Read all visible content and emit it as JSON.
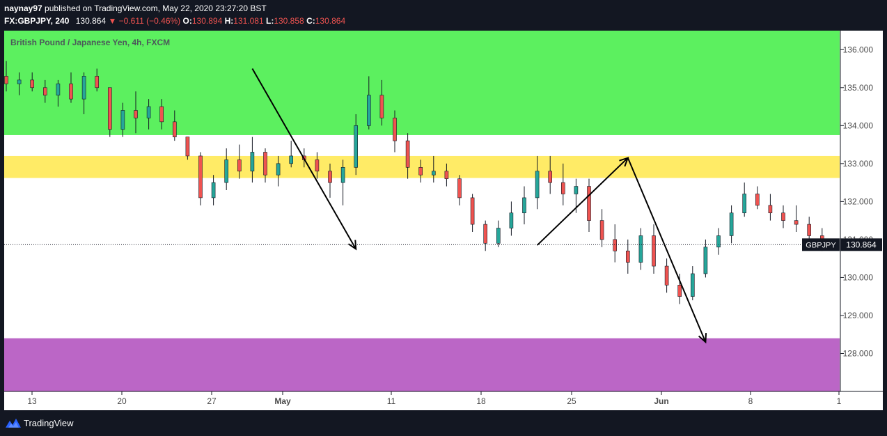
{
  "header": {
    "author": "naynay97",
    "published_text": "published on TradingView.com, May 22, 2020 23:27:20 BST",
    "symbol": "FX:GBPJPY, 240",
    "price": "130.864",
    "change": "▼ −0.611 (−0.46%)",
    "o_label": "O:",
    "o_value": "130.894",
    "h_label": "H:",
    "h_value": "131.081",
    "l_label": "L:",
    "l_value": "130.858",
    "c_label": "C:",
    "c_value": "130.864"
  },
  "chart_title": "British Pound / Japanese Yen, 4h, FXCM",
  "price_tag": {
    "symbol": "GBPJPY",
    "value": "130.864"
  },
  "footer": {
    "brand": "TradingView"
  },
  "colors": {
    "supply_zone": "#5cf05f",
    "resistance_zone": "#ffeb66",
    "demand_zone": "#bb66c6",
    "bull": "#26a69a",
    "bear": "#ef5350",
    "dark_bg": "#131722"
  },
  "chart_data": {
    "type": "candlestick",
    "title": "British Pound / Japanese Yen, 4h, FXCM",
    "y_axis": {
      "ticks": [
        "136.000",
        "135.000",
        "134.000",
        "133.000",
        "132.000",
        "131.000",
        "130.000",
        "129.000",
        "128.000"
      ],
      "range": [
        127.0,
        136.5
      ]
    },
    "x_axis": {
      "ticks": [
        "13",
        "20",
        "27",
        "May",
        "11",
        "18",
        "25",
        "Jun",
        "8",
        "1"
      ]
    },
    "last_price": 130.864,
    "zones": [
      {
        "name": "supply",
        "from": 133.75,
        "to": 136.5,
        "color": "#5cf05f"
      },
      {
        "name": "resistance",
        "from": 132.62,
        "to": 133.2,
        "color": "#ffeb66"
      },
      {
        "name": "demand",
        "from": 127.0,
        "to": 128.4,
        "color": "#bb66c6"
      }
    ],
    "drawings": [
      {
        "name": "drop-arrow",
        "from": {
          "date": "2020-04-30",
          "price": 135.5
        },
        "to": {
          "date": "2020-05-08",
          "price": 130.75
        }
      },
      {
        "name": "rise-arrow",
        "from": {
          "date": "2020-05-22",
          "price": 130.85
        },
        "to": {
          "date": "2020-05-29",
          "price": 133.15
        }
      },
      {
        "name": "target-arrow",
        "from": {
          "date": "2020-05-29",
          "price": 133.15
        },
        "to": {
          "date": "2020-06-04",
          "price": 128.3
        }
      }
    ],
    "candles": [
      [
        "2020-04-11",
        135.3,
        135.7,
        134.9,
        135.1
      ],
      [
        "2020-04-12",
        135.1,
        135.4,
        134.8,
        135.2
      ],
      [
        "2020-04-13",
        135.2,
        135.4,
        134.9,
        135.0
      ],
      [
        "2020-04-14",
        135.0,
        135.2,
        134.6,
        134.8
      ],
      [
        "2020-04-15",
        134.8,
        135.2,
        134.5,
        135.1
      ],
      [
        "2020-04-16",
        135.1,
        135.4,
        134.6,
        134.7
      ],
      [
        "2020-04-17",
        134.7,
        135.4,
        134.3,
        135.3
      ],
      [
        "2020-04-18",
        135.3,
        135.5,
        134.9,
        135.0
      ],
      [
        "2020-04-19",
        135.0,
        135.0,
        133.7,
        133.9
      ],
      [
        "2020-04-20",
        133.9,
        134.6,
        133.7,
        134.4
      ],
      [
        "2020-04-21",
        134.4,
        134.9,
        133.8,
        134.2
      ],
      [
        "2020-04-22",
        134.2,
        134.7,
        133.9,
        134.5
      ],
      [
        "2020-04-23",
        134.5,
        134.7,
        133.9,
        134.1
      ],
      [
        "2020-04-24",
        134.1,
        134.4,
        133.6,
        133.7
      ],
      [
        "2020-04-25",
        133.7,
        133.7,
        133.1,
        133.2
      ],
      [
        "2020-04-26",
        133.2,
        133.3,
        131.9,
        132.1
      ],
      [
        "2020-04-27",
        132.1,
        132.7,
        131.9,
        132.5
      ],
      [
        "2020-04-28",
        132.5,
        133.4,
        132.3,
        133.1
      ],
      [
        "2020-04-29",
        133.1,
        133.5,
        132.6,
        132.8
      ],
      [
        "2020-04-30",
        132.8,
        133.7,
        132.5,
        133.3
      ],
      [
        "2020-05-01",
        133.3,
        133.4,
        132.5,
        132.7
      ],
      [
        "2020-05-02",
        132.7,
        133.2,
        132.4,
        133.0
      ],
      [
        "2020-05-03",
        133.0,
        133.6,
        132.9,
        133.2
      ],
      [
        "2020-05-04",
        133.2,
        133.4,
        132.9,
        133.1
      ],
      [
        "2020-05-05",
        133.1,
        133.3,
        132.6,
        132.8
      ],
      [
        "2020-05-06",
        132.8,
        133.0,
        132.1,
        132.5
      ],
      [
        "2020-05-07",
        132.5,
        133.1,
        131.9,
        132.9
      ],
      [
        "2020-05-08",
        132.9,
        134.3,
        132.7,
        134.0
      ],
      [
        "2020-05-09",
        134.0,
        135.3,
        133.9,
        134.8
      ],
      [
        "2020-05-10",
        134.8,
        135.2,
        134.0,
        134.2
      ],
      [
        "2020-05-11",
        134.2,
        134.4,
        133.3,
        133.6
      ],
      [
        "2020-05-12",
        133.6,
        133.8,
        132.6,
        132.9
      ],
      [
        "2020-05-13",
        132.9,
        133.1,
        132.5,
        132.7
      ],
      [
        "2020-05-14",
        132.7,
        133.2,
        132.5,
        132.8
      ],
      [
        "2020-05-15",
        132.8,
        133.0,
        132.4,
        132.6
      ],
      [
        "2020-05-16",
        132.6,
        132.7,
        131.9,
        132.1
      ],
      [
        "2020-05-17",
        132.1,
        132.2,
        131.2,
        131.4
      ],
      [
        "2020-05-18",
        131.4,
        131.5,
        130.7,
        130.9
      ],
      [
        "2020-05-19",
        130.9,
        131.5,
        130.8,
        131.3
      ],
      [
        "2020-05-20",
        131.3,
        132.0,
        131.1,
        131.7
      ],
      [
        "2020-05-21",
        131.7,
        132.4,
        131.4,
        132.1
      ],
      [
        "2020-05-22",
        132.1,
        133.2,
        131.8,
        132.8
      ],
      [
        "2020-05-23",
        132.8,
        133.2,
        132.2,
        132.5
      ],
      [
        "2020-05-24",
        132.5,
        133.0,
        131.9,
        132.2
      ],
      [
        "2020-05-25",
        132.2,
        132.6,
        131.7,
        132.4
      ],
      [
        "2020-05-26",
        132.4,
        132.6,
        131.2,
        131.5
      ],
      [
        "2020-05-27",
        131.5,
        131.8,
        130.8,
        131.0
      ],
      [
        "2020-05-28",
        131.0,
        131.4,
        130.4,
        130.7
      ],
      [
        "2020-05-29",
        130.7,
        131.0,
        130.1,
        130.4
      ],
      [
        "2020-05-30",
        130.4,
        131.3,
        130.2,
        131.1
      ],
      [
        "2020-05-31",
        131.1,
        131.4,
        130.1,
        130.3
      ],
      [
        "2020-06-01",
        130.3,
        130.5,
        129.6,
        129.8
      ],
      [
        "2020-06-02",
        129.8,
        130.1,
        129.3,
        129.5
      ],
      [
        "2020-06-03",
        129.5,
        130.3,
        129.4,
        130.1
      ],
      [
        "2020-06-04",
        130.1,
        131.0,
        130.0,
        130.8
      ],
      [
        "2020-06-05",
        130.8,
        131.3,
        130.6,
        131.1
      ],
      [
        "2020-06-06",
        131.1,
        131.9,
        130.9,
        131.7
      ],
      [
        "2020-06-07",
        131.7,
        132.5,
        131.6,
        132.2
      ],
      [
        "2020-06-08",
        132.2,
        132.4,
        131.8,
        131.9
      ],
      [
        "2020-06-09",
        131.9,
        132.2,
        131.5,
        131.7
      ],
      [
        "2020-06-10",
        131.7,
        131.9,
        131.3,
        131.5
      ],
      [
        "2020-06-11",
        131.5,
        131.9,
        131.2,
        131.4
      ],
      [
        "2020-06-12",
        131.4,
        131.6,
        130.9,
        131.1
      ],
      [
        "2020-06-13",
        131.1,
        131.3,
        130.7,
        130.9
      ]
    ]
  }
}
